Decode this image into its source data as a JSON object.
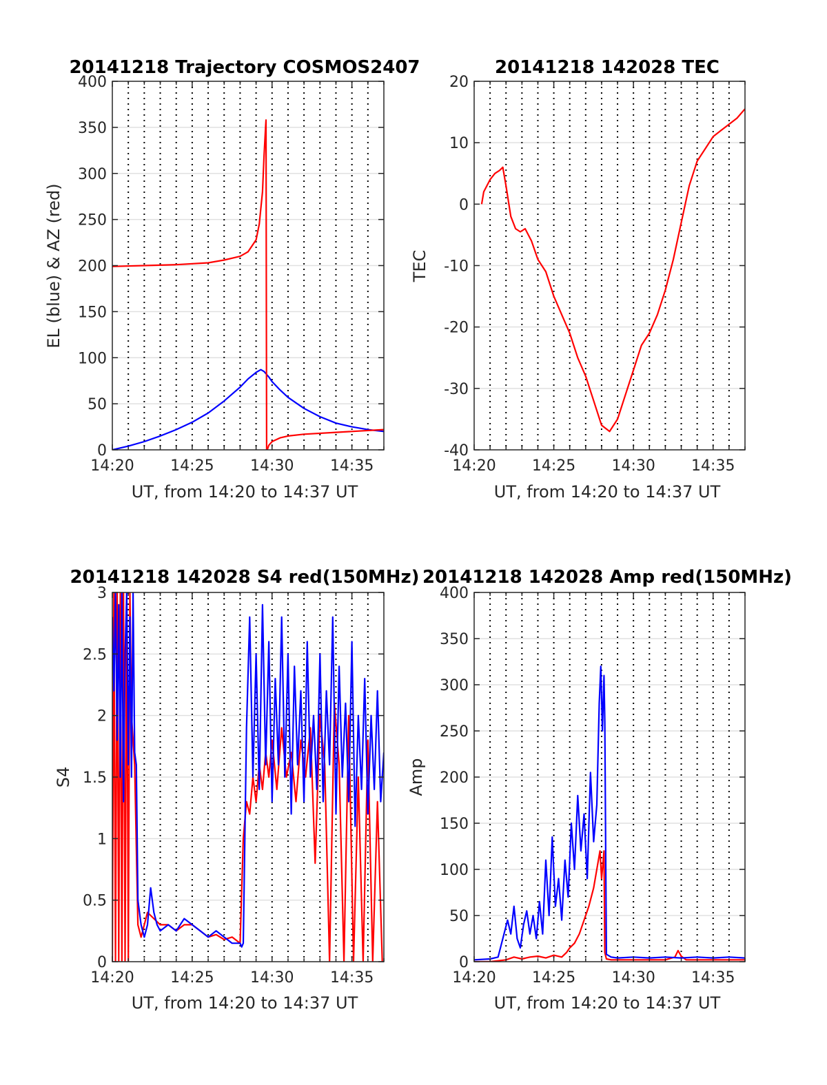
{
  "figure": {
    "background": "#ffffff"
  },
  "chart_data": [
    {
      "id": "trajectory",
      "type": "line",
      "title": "20141218 Trajectory COSMOS2407",
      "xlabel": "UT, from 14:20 to 14:37 UT",
      "ylabel": "EL (blue) & AZ (red)",
      "xlim": [
        0,
        17
      ],
      "ylim": [
        0,
        400
      ],
      "xticks": [
        0,
        5,
        10,
        15
      ],
      "xticklabels": [
        "14:20",
        "14:25",
        "14:30",
        "14:35"
      ],
      "yticks": [
        0,
        50,
        100,
        150,
        200,
        250,
        300,
        350,
        400
      ],
      "yticklabels": [
        "0",
        "50",
        "100",
        "150",
        "200",
        "250",
        "300",
        "350",
        "400"
      ],
      "grid": {
        "vertical_dotted_every_min": 1,
        "horizontal": true
      },
      "series": [
        {
          "color": "#0000ff",
          "x": [
            0,
            1,
            2,
            3,
            4,
            5,
            6,
            7,
            8,
            8.5,
            9,
            9.3,
            9.5,
            9.8,
            10,
            10.5,
            11,
            12,
            13,
            14,
            15,
            16,
            17
          ],
          "y": [
            0,
            4,
            9,
            15,
            22,
            30,
            40,
            53,
            68,
            77,
            84,
            87,
            85,
            79,
            74,
            65,
            57,
            45,
            36,
            29,
            25,
            22,
            20
          ]
        },
        {
          "color": "#ff0000",
          "x": [
            0,
            2,
            4,
            6,
            7,
            8,
            8.5,
            9,
            9.2,
            9.4,
            9.5,
            9.6,
            9.62,
            9.64,
            9.66,
            9.7,
            9.8,
            10,
            10.5,
            11,
            12,
            14,
            17
          ],
          "y": [
            199,
            200,
            201,
            203,
            206,
            210,
            215,
            228,
            245,
            280,
            320,
            352,
            358,
            200,
            0,
            0,
            5,
            9,
            13,
            15,
            17,
            19,
            22
          ]
        }
      ]
    },
    {
      "id": "tec",
      "type": "line",
      "title": "20141218 142028 TEC",
      "xlabel": "UT, from 14:20 to 14:37 UT",
      "ylabel": "TEC",
      "xlim": [
        0,
        17
      ],
      "ylim": [
        -40,
        20
      ],
      "xticks": [
        0,
        5,
        10,
        15
      ],
      "xticklabels": [
        "14:20",
        "14:25",
        "14:30",
        "14:35"
      ],
      "yticks": [
        -40,
        -30,
        -20,
        -10,
        0,
        10,
        20
      ],
      "yticklabels": [
        "-40",
        "-30",
        "-20",
        "-10",
        "0",
        "10",
        "20"
      ],
      "grid": {
        "vertical_dotted_every_min": 1,
        "horizontal": true
      },
      "series": [
        {
          "color": "#ff0000",
          "x": [
            0.47,
            0.6,
            0.8,
            1.0,
            1.3,
            1.6,
            1.8,
            2.0,
            2.3,
            2.6,
            2.9,
            3.2,
            3.6,
            4.0,
            4.5,
            5.0,
            5.5,
            6.0,
            6.5,
            7.0,
            7.5,
            8.0,
            8.5,
            9.0,
            9.5,
            10.0,
            10.5,
            11.0,
            11.5,
            12.0,
            12.5,
            13.0,
            13.5,
            14.0,
            14.5,
            15.0,
            15.5,
            16.0,
            16.5,
            17.0
          ],
          "y": [
            0,
            2,
            3,
            4,
            5,
            5.5,
            6,
            3,
            -2,
            -4,
            -4.5,
            -4,
            -6,
            -9,
            -11,
            -15,
            -18,
            -21,
            -25,
            -28,
            -32,
            -36,
            -37,
            -35,
            -31,
            -27,
            -23,
            -21,
            -18,
            -14,
            -9,
            -3,
            3,
            7,
            9,
            11,
            12,
            13,
            14,
            15.5
          ]
        }
      ]
    },
    {
      "id": "s4",
      "type": "line",
      "title": "20141218 142028 S4 red(150MHz)",
      "xlabel": "UT, from 14:20 to 14:37 UT",
      "ylabel": "S4",
      "xlim": [
        0,
        17
      ],
      "ylim": [
        0,
        3
      ],
      "xticks": [
        0,
        5,
        10,
        15
      ],
      "xticklabels": [
        "14:20",
        "14:25",
        "14:30",
        "14:35"
      ],
      "yticks": [
        0,
        0.5,
        1,
        1.5,
        2,
        2.5,
        3
      ],
      "yticklabels": [
        "0",
        "0.5",
        "1",
        "1.5",
        "2",
        "2.5",
        "3"
      ],
      "grid": {
        "vertical_dotted_every_min": 1,
        "horizontal": true
      },
      "series": [
        {
          "color": "#ff0000",
          "x": [
            0,
            0.1,
            0.2,
            0.3,
            0.4,
            0.5,
            0.6,
            0.7,
            0.8,
            0.9,
            1.0,
            1.1,
            1.2,
            1.4,
            1.6,
            1.8,
            2.0,
            2.2,
            2.6,
            3.0,
            3.5,
            4.0,
            4.5,
            5.0,
            5.5,
            6.0,
            6.5,
            7.0,
            7.5,
            8.0,
            8.2,
            8.4,
            8.6,
            8.8,
            9.0,
            9.2,
            9.4,
            9.6,
            9.8,
            10.0,
            10.3,
            10.6,
            10.9,
            11.2,
            11.5,
            11.8,
            12.1,
            12.4,
            12.7,
            13.0,
            13.3,
            13.6,
            13.9,
            14.2,
            14.5,
            14.8,
            15.1,
            15.4,
            15.7,
            16.0,
            16.3,
            16.6,
            16.9
          ],
          "y": [
            0,
            3,
            0,
            3,
            0,
            3,
            0,
            3,
            0,
            3,
            0,
            3,
            2.0,
            1.6,
            0.3,
            0.2,
            0.3,
            0.4,
            0.35,
            0.3,
            0.3,
            0.25,
            0.3,
            0.3,
            0.25,
            0.2,
            0.22,
            0.18,
            0.2,
            0.15,
            1.0,
            1.3,
            1.2,
            1.5,
            1.3,
            1.6,
            1.4,
            1.7,
            1.5,
            1.8,
            1.4,
            1.9,
            1.5,
            1.7,
            1.3,
            1.8,
            1.5,
            1.9,
            0.8,
            2.0,
            1.6,
            0,
            2.1,
            1.6,
            0,
            2.0,
            0,
            1.5,
            0,
            1.8,
            0,
            1.3,
            0
          ]
        },
        {
          "color": "#0000ff",
          "x": [
            0,
            0.1,
            0.2,
            0.3,
            0.4,
            0.5,
            0.6,
            0.7,
            0.8,
            0.9,
            1.0,
            1.1,
            1.2,
            1.3,
            1.4,
            1.5,
            1.6,
            1.8,
            2.0,
            2.2,
            2.4,
            2.6,
            2.8,
            3.0,
            3.5,
            4.0,
            4.5,
            5.0,
            5.5,
            6.0,
            6.5,
            7.0,
            7.5,
            8.0,
            8.1,
            8.2,
            8.4,
            8.6,
            8.8,
            9.0,
            9.2,
            9.4,
            9.6,
            9.8,
            10.0,
            10.2,
            10.4,
            10.6,
            10.8,
            11.0,
            11.2,
            11.4,
            11.6,
            11.8,
            12.0,
            12.2,
            12.4,
            12.6,
            12.8,
            13.0,
            13.2,
            13.4,
            13.6,
            13.8,
            14.0,
            14.2,
            14.4,
            14.6,
            14.8,
            15.0,
            15.2,
            15.4,
            15.6,
            15.8,
            16.0,
            16.2,
            16.4,
            16.6,
            16.8,
            17.0
          ],
          "y": [
            2.8,
            2.2,
            3.0,
            1.8,
            2.9,
            1.5,
            3.0,
            1.3,
            2.5,
            3.0,
            1.6,
            2.8,
            1.5,
            3.0,
            1.7,
            1.6,
            0.5,
            0.3,
            0.2,
            0.3,
            0.6,
            0.4,
            0.3,
            0.25,
            0.3,
            0.25,
            0.35,
            0.3,
            0.25,
            0.2,
            0.25,
            0.2,
            0.15,
            0.15,
            0.12,
            0.15,
            1.9,
            2.8,
            1.5,
            2.5,
            1.4,
            2.9,
            1.6,
            2.6,
            1.3,
            2.3,
            1.6,
            2.8,
            1.5,
            2.5,
            1.2,
            2.4,
            1.6,
            2.2,
            1.3,
            2.6,
            1.5,
            2.0,
            1.4,
            2.5,
            1.3,
            2.2,
            1.6,
            2.8,
            1.2,
            2.4,
            1.5,
            2.1,
            1.3,
            2.6,
            1.1,
            2.0,
            1.4,
            2.3,
            1.2,
            2.0,
            1.4,
            2.2,
            1.3,
            1.7
          ]
        }
      ]
    },
    {
      "id": "amp",
      "type": "line",
      "title": "20141218 142028 Amp red(150MHz)",
      "xlabel": "UT, from 14:20 to 14:37 UT",
      "ylabel": "Amp",
      "xlim": [
        0,
        17
      ],
      "ylim": [
        0,
        400
      ],
      "xticks": [
        0,
        5,
        10,
        15
      ],
      "xticklabels": [
        "14:20",
        "14:25",
        "14:30",
        "14:35"
      ],
      "yticks": [
        0,
        50,
        100,
        150,
        200,
        250,
        300,
        350,
        400
      ],
      "yticklabels": [
        "0",
        "50",
        "100",
        "150",
        "200",
        "250",
        "300",
        "350",
        "400"
      ],
      "grid": {
        "vertical_dotted_every_min": 1,
        "horizontal": true
      },
      "series": [
        {
          "color": "#ff0000",
          "x": [
            0,
            1,
            2,
            2.5,
            3,
            3.5,
            4,
            4.5,
            5,
            5.5,
            5.8,
            6.0,
            6.3,
            6.6,
            6.9,
            7.2,
            7.5,
            7.7,
            7.9,
            8.0,
            8.1,
            8.15,
            8.2,
            8.3,
            8.6,
            9,
            10,
            11,
            12,
            12.6,
            12.8,
            13.0,
            13.3,
            14,
            15,
            16,
            17
          ],
          "y": [
            0,
            0,
            2,
            5,
            3,
            5,
            6,
            4,
            7,
            5,
            10,
            15,
            20,
            30,
            45,
            60,
            80,
            100,
            120,
            90,
            110,
            120,
            10,
            3,
            2,
            2,
            2,
            2,
            2,
            5,
            12,
            6,
            2,
            2,
            2,
            2,
            2
          ]
        },
        {
          "color": "#0000ff",
          "x": [
            0,
            1,
            1.5,
            1.8,
            2.1,
            2.3,
            2.5,
            2.7,
            2.9,
            3.1,
            3.3,
            3.5,
            3.7,
            3.9,
            4.1,
            4.3,
            4.5,
            4.7,
            4.9,
            5.1,
            5.3,
            5.5,
            5.7,
            5.9,
            6.1,
            6.3,
            6.5,
            6.7,
            6.9,
            7.1,
            7.3,
            7.5,
            7.7,
            7.85,
            7.95,
            8.05,
            8.15,
            8.2,
            8.3,
            8.6,
            9,
            10,
            11,
            12,
            13,
            14,
            15,
            16,
            17
          ],
          "y": [
            2,
            3,
            5,
            25,
            45,
            30,
            60,
            25,
            15,
            40,
            55,
            30,
            50,
            25,
            65,
            30,
            110,
            50,
            135,
            60,
            90,
            45,
            110,
            70,
            150,
            100,
            180,
            120,
            160,
            90,
            205,
            130,
            170,
            280,
            320,
            250,
            310,
            260,
            8,
            5,
            4,
            5,
            4,
            5,
            4,
            5,
            4,
            5,
            4
          ]
        }
      ]
    }
  ]
}
